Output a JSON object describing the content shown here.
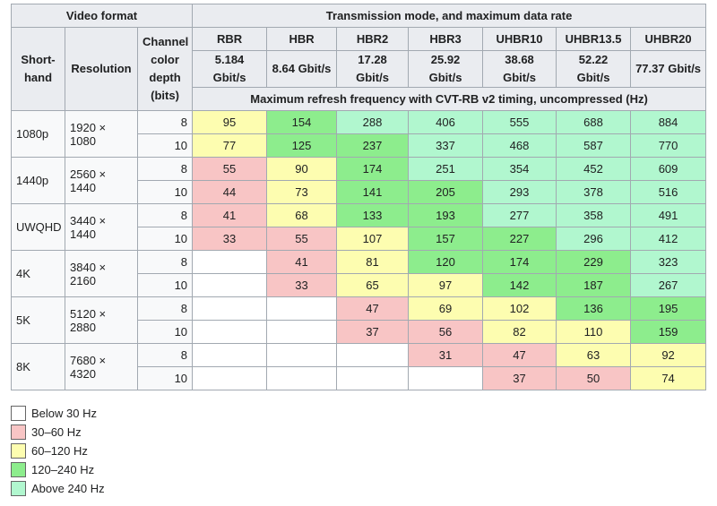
{
  "header": {
    "video_format": "Video format",
    "transmission": "Transmission mode, and maximum data rate",
    "shorthand": "Short-hand",
    "resolution": "Resolution",
    "depth": "Channel color depth (bits)",
    "modes": [
      {
        "name": "RBR",
        "rate": "5.184 Gbit/s"
      },
      {
        "name": "HBR",
        "rate": "8.64 Gbit/s"
      },
      {
        "name": "HBR2",
        "rate": "17.28 Gbit/s"
      },
      {
        "name": "HBR3",
        "rate": "25.92 Gbit/s"
      },
      {
        "name": "UHBR10",
        "rate": "38.68 Gbit/s"
      },
      {
        "name": "UHBR13.5",
        "rate": "52.22 Gbit/s"
      },
      {
        "name": "UHBR20",
        "rate": "77.37 Gbit/s"
      }
    ],
    "subheader": "Maximum refresh frequency with CVT-RB v2 timing, uncompressed (Hz)"
  },
  "table": {
    "groups": [
      {
        "shorthand": "1080p",
        "resolution": "1920 × 1080",
        "rows": [
          {
            "depth": 8,
            "values": [
              95,
              154,
              288,
              406,
              555,
              688,
              884
            ],
            "colors": [
              "#fdfdb0",
              "#8ded8d",
              "#b1f7cf",
              "#b1f7cf",
              "#b1f7cf",
              "#b1f7cf",
              "#b1f7cf"
            ]
          },
          {
            "depth": 10,
            "values": [
              77,
              125,
              237,
              337,
              468,
              587,
              770
            ],
            "colors": [
              "#fdfdb0",
              "#8ded8d",
              "#8ded8d",
              "#b1f7cf",
              "#b1f7cf",
              "#b1f7cf",
              "#b1f7cf"
            ]
          }
        ]
      },
      {
        "shorthand": "1440p",
        "resolution": "2560 × 1440",
        "rows": [
          {
            "depth": 8,
            "values": [
              55,
              90,
              174,
              251,
              354,
              452,
              609
            ],
            "colors": [
              "#f8c5c5",
              "#fdfdb0",
              "#8ded8d",
              "#b1f7cf",
              "#b1f7cf",
              "#b1f7cf",
              "#b1f7cf"
            ]
          },
          {
            "depth": 10,
            "values": [
              44,
              73,
              141,
              205,
              293,
              378,
              516
            ],
            "colors": [
              "#f8c5c5",
              "#fdfdb0",
              "#8ded8d",
              "#8ded8d",
              "#b1f7cf",
              "#b1f7cf",
              "#b1f7cf"
            ]
          }
        ]
      },
      {
        "shorthand": "UWQHD",
        "resolution": "3440 × 1440",
        "rows": [
          {
            "depth": 8,
            "values": [
              41,
              68,
              133,
              193,
              277,
              358,
              491
            ],
            "colors": [
              "#f8c5c5",
              "#fdfdb0",
              "#8ded8d",
              "#8ded8d",
              "#b1f7cf",
              "#b1f7cf",
              "#b1f7cf"
            ]
          },
          {
            "depth": 10,
            "values": [
              33,
              55,
              107,
              157,
              227,
              296,
              412
            ],
            "colors": [
              "#f8c5c5",
              "#f8c5c5",
              "#fdfdb0",
              "#8ded8d",
              "#8ded8d",
              "#b1f7cf",
              "#b1f7cf"
            ]
          }
        ]
      },
      {
        "shorthand": "4K",
        "resolution": "3840 × 2160",
        "rows": [
          {
            "depth": 8,
            "values": [
              null,
              41,
              81,
              120,
              174,
              229,
              323
            ],
            "colors": [
              "#ffffff",
              "#f8c5c5",
              "#fdfdb0",
              "#8ded8d",
              "#8ded8d",
              "#8ded8d",
              "#b1f7cf"
            ]
          },
          {
            "depth": 10,
            "values": [
              null,
              33,
              65,
              97,
              142,
              187,
              267
            ],
            "colors": [
              "#ffffff",
              "#f8c5c5",
              "#fdfdb0",
              "#fdfdb0",
              "#8ded8d",
              "#8ded8d",
              "#b1f7cf"
            ]
          }
        ]
      },
      {
        "shorthand": "5K",
        "resolution": "5120 × 2880",
        "rows": [
          {
            "depth": 8,
            "values": [
              null,
              null,
              47,
              69,
              102,
              136,
              195
            ],
            "colors": [
              "#ffffff",
              "#ffffff",
              "#f8c5c5",
              "#fdfdb0",
              "#fdfdb0",
              "#8ded8d",
              "#8ded8d"
            ]
          },
          {
            "depth": 10,
            "values": [
              null,
              null,
              37,
              56,
              82,
              110,
              159
            ],
            "colors": [
              "#ffffff",
              "#ffffff",
              "#f8c5c5",
              "#f8c5c5",
              "#fdfdb0",
              "#fdfdb0",
              "#8ded8d"
            ]
          }
        ]
      },
      {
        "shorthand": "8K",
        "resolution": "7680 × 4320",
        "rows": [
          {
            "depth": 8,
            "values": [
              null,
              null,
              null,
              31,
              47,
              63,
              92
            ],
            "colors": [
              "#ffffff",
              "#ffffff",
              "#ffffff",
              "#f8c5c5",
              "#f8c5c5",
              "#fdfdb0",
              "#fdfdb0"
            ]
          },
          {
            "depth": 10,
            "values": [
              null,
              null,
              null,
              null,
              37,
              50,
              74
            ],
            "colors": [
              "#ffffff",
              "#ffffff",
              "#ffffff",
              "#ffffff",
              "#f8c5c5",
              "#f8c5c5",
              "#fdfdb0"
            ]
          }
        ]
      }
    ]
  },
  "legend": {
    "items": [
      {
        "label": "Below 30 Hz",
        "color": "#ffffff"
      },
      {
        "label": "30–60 Hz",
        "color": "#f8c5c5"
      },
      {
        "label": "60–120 Hz",
        "color": "#fdfdb0"
      },
      {
        "label": "120–240 Hz",
        "color": "#8ded8d"
      },
      {
        "label": "Above 240 Hz",
        "color": "#b1f7cf"
      }
    ]
  }
}
